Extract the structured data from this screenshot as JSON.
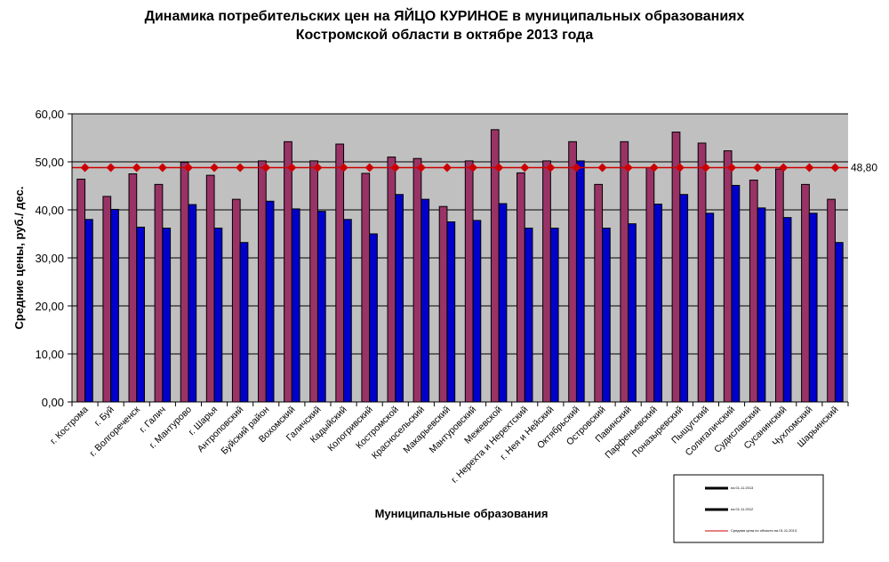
{
  "chart_data": {
    "type": "bar",
    "title": "Динамика потребительских цен на ЯЙЦО КУРИНОЕ в муниципальных образованиях\nКостромской области в октябре 2013 года",
    "xlabel": "Муниципальные  образования",
    "ylabel": "Средние  цены,  руб./ дес.",
    "ylim": [
      0,
      60
    ],
    "yticks": [
      "0,00",
      "10,00",
      "20,00",
      "30,00",
      "40,00",
      "50,00",
      "60,00"
    ],
    "grid": true,
    "legend_position": "bottom-right",
    "categories": [
      "г. Кострома",
      "г. Буй",
      "г. Волгореченск",
      "г. Галич",
      "г. Мантурово",
      "г. Шарья",
      "Антроповский",
      "Буйский район",
      "Вохомский",
      "Галичский",
      "Кадыйский",
      "Кологривский",
      "Костромской",
      "Красносельский",
      "Макарьевский",
      "Мантуровский",
      "Межевской",
      "г. Нерехта и Нерехтский",
      "г. Нея и Нейский",
      "Октябрьский",
      "Островский",
      "Павинский",
      "Парфеньевский",
      "Поназыревский",
      "Пыщугский",
      "Солигаличский",
      "Судиславский",
      "Сусанинский",
      "Чухломский",
      "Шарьинский"
    ],
    "series": [
      {
        "name": "на 01.11.2013",
        "color": "#993366",
        "values": [
          46.4,
          42.8,
          47.5,
          45.3,
          49.9,
          47.2,
          42.2,
          50.2,
          54.2,
          50.2,
          53.7,
          47.6,
          51.0,
          50.7,
          40.7,
          50.2,
          56.7,
          47.7,
          50.2,
          54.2,
          45.3,
          54.2,
          48.8,
          56.2,
          53.9,
          52.3,
          46.2,
          48.5,
          45.3,
          42.2
        ]
      },
      {
        "name": "на 01.11.2012",
        "color": "#0000cc",
        "values": [
          38.0,
          40.1,
          36.4,
          36.2,
          41.1,
          36.2,
          33.2,
          41.8,
          40.2,
          39.7,
          38.0,
          35.0,
          43.2,
          42.2,
          37.5,
          37.8,
          41.3,
          36.2,
          36.2,
          50.2,
          36.2,
          37.1,
          41.2,
          43.2,
          39.3,
          45.1,
          40.4,
          38.4,
          39.3,
          33.2
        ]
      }
    ],
    "average": {
      "name": "Средняя цена по области на 01.11.2013",
      "value": 48.8,
      "label": "48,80",
      "color": "#cc0000"
    }
  }
}
